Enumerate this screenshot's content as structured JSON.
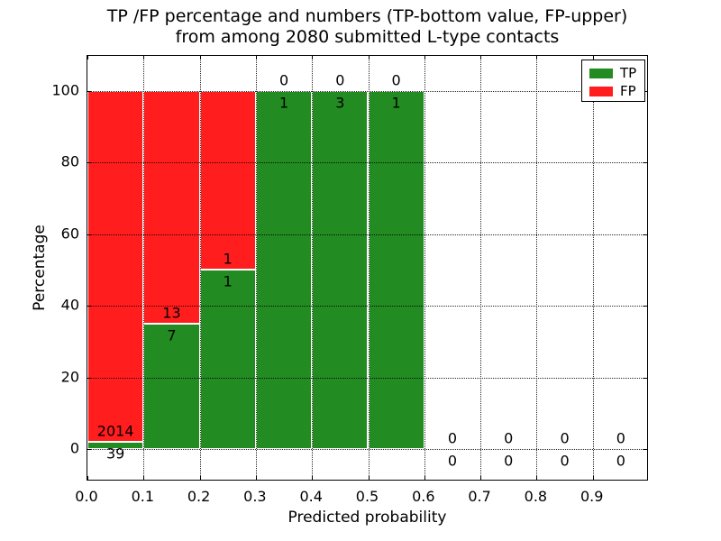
{
  "title": {
    "line1": "TP /FP percentage and numbers (TP-bottom value, FP-upper)",
    "line2": "from among 2080 submitted L-type contacts"
  },
  "axes": {
    "ylabel": "Percentage",
    "xlabel": "Predicted probability"
  },
  "legend": {
    "position": "upper right",
    "items": [
      {
        "label": "TP",
        "color": "#228b22"
      },
      {
        "label": "FP",
        "color": "#ff1d1d"
      }
    ]
  },
  "chart_data": {
    "type": "bar",
    "stacked": true,
    "title": "TP /FP percentage and numbers (TP-bottom value, FP-upper) from among 2080 submitted L-type contacts",
    "xlabel": "Predicted probability",
    "ylabel": "Percentage",
    "total_contacts": 2080,
    "xlim": [
      0.0,
      1.0
    ],
    "ylim": [
      -9,
      110
    ],
    "grid": "dotted",
    "legend_position": "upper right",
    "x_tick_labels": [
      "0.0",
      "0.1",
      "0.2",
      "0.3",
      "0.4",
      "0.5",
      "0.6",
      "0.7",
      "0.8",
      "0.9"
    ],
    "y_tick_labels": [
      "0",
      "20",
      "40",
      "60",
      "80",
      "100"
    ],
    "series_colors": {
      "tp": "#228b22",
      "fp": "#ff1d1d"
    },
    "bins": [
      {
        "range": [
          0.0,
          0.1
        ],
        "tp": 39,
        "fp": 2014,
        "tp_pct": 1.9,
        "fp_pct": 98.1
      },
      {
        "range": [
          0.1,
          0.2
        ],
        "tp": 7,
        "fp": 13,
        "tp_pct": 35.0,
        "fp_pct": 65.0
      },
      {
        "range": [
          0.2,
          0.3
        ],
        "tp": 1,
        "fp": 1,
        "tp_pct": 50.0,
        "fp_pct": 50.0
      },
      {
        "range": [
          0.3,
          0.4
        ],
        "tp": 1,
        "fp": 0,
        "tp_pct": 100.0,
        "fp_pct": 0.0
      },
      {
        "range": [
          0.4,
          0.5
        ],
        "tp": 3,
        "fp": 0,
        "tp_pct": 100.0,
        "fp_pct": 0.0
      },
      {
        "range": [
          0.5,
          0.6
        ],
        "tp": 1,
        "fp": 0,
        "tp_pct": 100.0,
        "fp_pct": 0.0
      },
      {
        "range": [
          0.6,
          0.7
        ],
        "tp": 0,
        "fp": 0,
        "tp_pct": 0.0,
        "fp_pct": 0.0
      },
      {
        "range": [
          0.7,
          0.8
        ],
        "tp": 0,
        "fp": 0,
        "tp_pct": 0.0,
        "fp_pct": 0.0
      },
      {
        "range": [
          0.8,
          0.9
        ],
        "tp": 0,
        "fp": 0,
        "tp_pct": 0.0,
        "fp_pct": 0.0
      },
      {
        "range": [
          0.9,
          1.0
        ],
        "tp": 0,
        "fp": 0,
        "tp_pct": 0.0,
        "fp_pct": 0.0
      }
    ]
  }
}
